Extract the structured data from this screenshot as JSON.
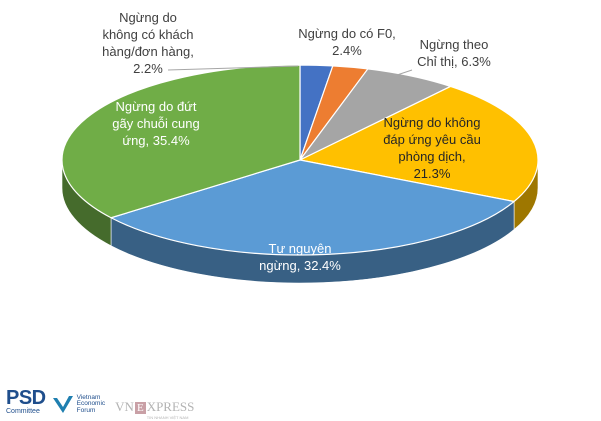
{
  "chart_data": {
    "type": "pie",
    "slices": [
      {
        "name": "Ngừng do không có khách hàng/đơn hàng",
        "value": 2.2,
        "color": "#4472C4",
        "label": [
          "Ngừng do",
          "không  có khách",
          "hàng/đơn hàng,",
          "2.2%"
        ]
      },
      {
        "name": "Ngừng do có F0",
        "value": 2.4,
        "color": "#ED7D31",
        "label": [
          "Ngừng do có F0,",
          "2.4%"
        ]
      },
      {
        "name": "Ngừng theo Chỉ thị",
        "value": 6.3,
        "color": "#A5A5A5",
        "label": [
          "Ngừng theo",
          "Chỉ thị, 6.3%"
        ]
      },
      {
        "name": "Ngừng do không đáp ứng yêu cầu phòng dịch",
        "value": 21.3,
        "color": "#FFC000",
        "label": [
          "Ngừng do không",
          "đáp ứng yêu cầu",
          "phòng dịch,",
          "21.3%"
        ]
      },
      {
        "name": "Tự nguyện ngừng",
        "value": 32.4,
        "color": "#5B9BD5",
        "label": [
          "Tự nguyện",
          "ngừng, 32.4%"
        ]
      },
      {
        "name": "Ngừng do đứt gãy chuỗi cung ứng",
        "value": 35.4,
        "color": "#70AD47",
        "label": [
          "Ngừng do đứt",
          "gãy chuỗi cung",
          "ứng, 35.4%"
        ]
      }
    ]
  },
  "logos": {
    "psd_main": "PSD",
    "psd_sub": "Committee",
    "vef_text": "Vietnam\nEconomic\nForum",
    "vnexpress_vn": "VN",
    "vnexpress_e": "E",
    "vnexpress_rest": "XPRESS",
    "vnexpress_tagline": "TIN NHANH VIỆT NAM"
  }
}
